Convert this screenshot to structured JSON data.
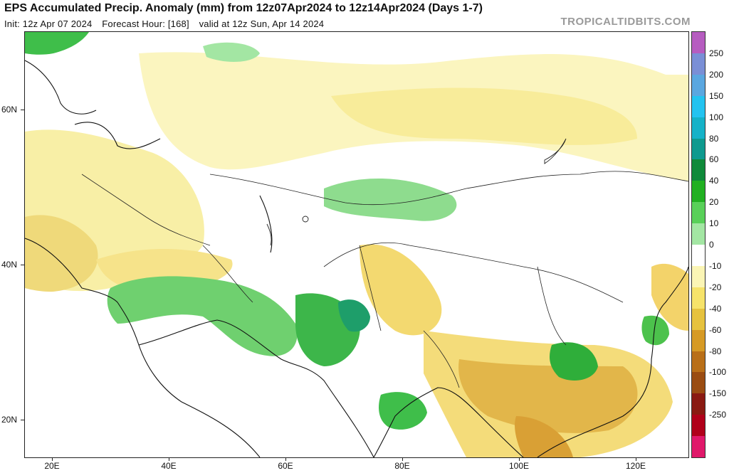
{
  "header": {
    "title": "EPS Accumulated Precip. Anomaly (mm) from 12z07Apr2024 to 12z14Apr2024 (Days 1-7)",
    "init": "Init: 12z Apr 07 2024",
    "forecast_hour": "Forecast Hour: [168]",
    "valid": "valid at 12z Sun, Apr 14 2024",
    "brand": "TROPICALTIDBITS.COM"
  },
  "axes": {
    "lat_labels": [
      "60N",
      "40N",
      "20N"
    ],
    "lon_labels": [
      "20E",
      "40E",
      "60E",
      "80E",
      "100E",
      "120E"
    ]
  },
  "legend": {
    "labels": [
      "250",
      "200",
      "150",
      "100",
      "80",
      "60",
      "40",
      "20",
      "10",
      "0",
      "-10",
      "-20",
      "-40",
      "-60",
      "-80",
      "-100",
      "-150",
      "-250"
    ],
    "colors": [
      "#b65cc0",
      "#7a8fd6",
      "#5aa7e0",
      "#23c3f0",
      "#15b2c8",
      "#0e9a8f",
      "#0f8a3a",
      "#21b021",
      "#59d059",
      "#a3e6a3",
      "#ffffff",
      "#fbf5b5",
      "#f6e36a",
      "#e6c23e",
      "#d69a25",
      "#b96f18",
      "#9a4c12",
      "#8a1a12",
      "#b0001a",
      "#e0186a"
    ]
  }
}
